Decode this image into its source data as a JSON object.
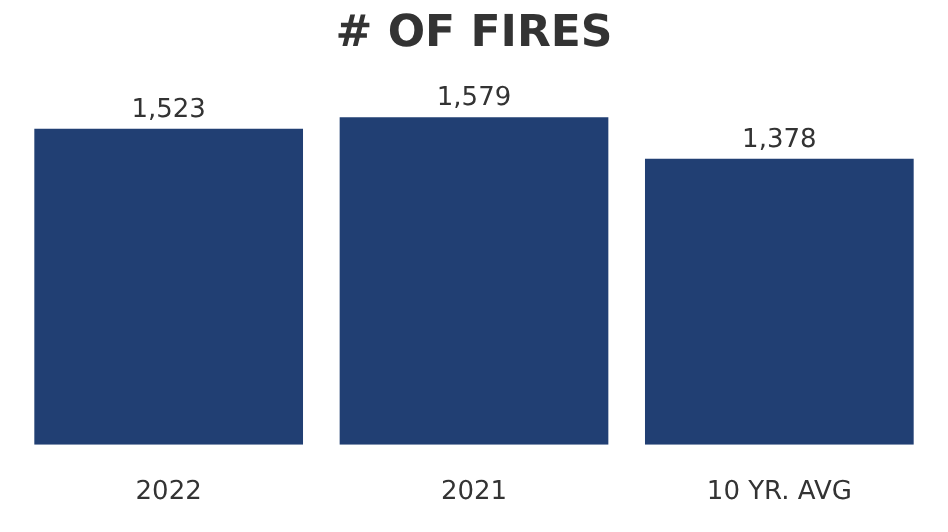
{
  "chart_data": {
    "type": "bar",
    "title": "# OF FIRES",
    "categories": [
      "2022",
      "2021",
      "10 YR. AVG"
    ],
    "values": [
      1523,
      1579,
      1378
    ],
    "value_labels": [
      "1,523",
      "1,579",
      "1,378"
    ],
    "color": "#213f73",
    "legend": false
  }
}
